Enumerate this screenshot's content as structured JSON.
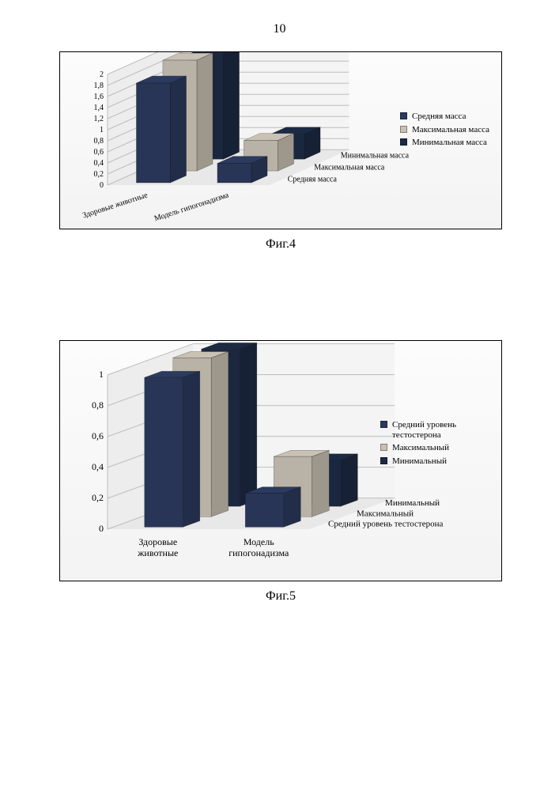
{
  "page_number": "10",
  "fig4": {
    "caption": "Фиг.4",
    "type": "3d-bar",
    "categories": [
      "Здоровые животные",
      "Модель гипогонадизма"
    ],
    "series": [
      {
        "key": "avg",
        "name": "Средняя масса",
        "color": "#2b3a5e",
        "values": [
          1.8,
          0.35
        ]
      },
      {
        "key": "max",
        "name": "Максимальная масса",
        "color": "#c9c1b4",
        "values": [
          2.0,
          0.55
        ]
      },
      {
        "key": "min",
        "name": "Минимальная масса",
        "color": "#1d2a44",
        "values": [
          1.9,
          0.45
        ]
      }
    ],
    "depth_axis_labels": [
      "Средняя масса",
      "Максимальная масса",
      "Минимальная масса"
    ],
    "legend_labels": [
      "Средняя масса",
      "Максимальная масса",
      "Минимальная масса"
    ],
    "y": {
      "min": 0,
      "max": 2,
      "step": 0.2
    },
    "panel_bg": "#f6f6f6",
    "walls": {
      "floor": "#e8e8e8",
      "back": "#f4f4f4",
      "side": "#ededed",
      "grid": "#bdbdbd"
    },
    "font": {
      "tick_pt": 10,
      "label_pt": 10,
      "caption_pt": 16
    }
  },
  "fig5": {
    "caption": "Фиг.5",
    "type": "3d-bar",
    "categories": [
      "Здоровые\nживотные",
      "Модель\nгипогонадизма"
    ],
    "series": [
      {
        "key": "avg",
        "name": "Средний уровень тестостерона",
        "short": "Средний уровень тестостерона",
        "color": "#2b3a5e",
        "values": [
          0.97,
          0.22
        ]
      },
      {
        "key": "max",
        "name": "Максимальный",
        "short": "Максимальный",
        "color": "#c9c1b4",
        "values": [
          1.03,
          0.39
        ]
      },
      {
        "key": "min",
        "name": "Минимальный",
        "short": "Минимальный",
        "color": "#1d2a44",
        "values": [
          1.02,
          0.3
        ]
      }
    ],
    "depth_axis_labels": [
      "Средний уровень тестостерона",
      "Максимальный",
      "Минимальный"
    ],
    "legend_labels": [
      "Средний уровень\nтестостерона",
      "Максимальный",
      "Минимальный"
    ],
    "y": {
      "min": 0,
      "max": 1,
      "step": 0.2
    },
    "panel_bg": "#f6f6f6",
    "walls": {
      "floor": "#e8e8e8",
      "back": "#f4f4f4",
      "side": "#ededed",
      "grid": "#bdbdbd"
    },
    "font": {
      "tick_pt": 12,
      "label_pt": 11,
      "caption_pt": 16
    }
  }
}
